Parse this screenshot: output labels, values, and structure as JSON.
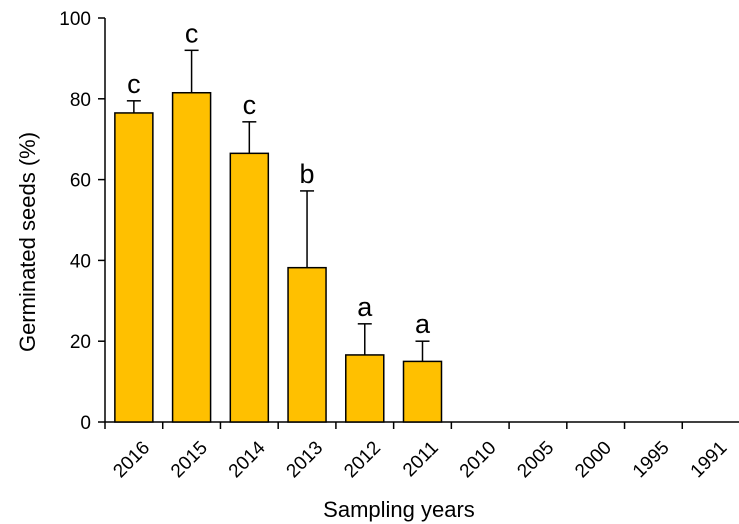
{
  "chart_data": {
    "type": "bar",
    "xlabel": "Sampling years",
    "ylabel": "Germinated seeds (%)",
    "ylim": [
      0,
      100
    ],
    "yticks": [
      0,
      20,
      40,
      60,
      80,
      100
    ],
    "grid": false,
    "legend": "none",
    "categories": [
      "2016",
      "2015",
      "2014",
      "2013",
      "2012",
      "2011",
      "2010",
      "2005",
      "2000",
      "1995",
      "1991"
    ],
    "values": [
      76.5,
      81.5,
      66.5,
      38.2,
      16.6,
      15.0,
      0,
      0,
      0,
      0,
      0
    ],
    "error_plus": [
      3.0,
      10.5,
      7.8,
      19.0,
      7.7,
      5.0,
      0,
      0,
      0,
      0,
      0
    ],
    "significance_letters": [
      "c",
      "c",
      "c",
      "b",
      "a",
      "a",
      "",
      "",
      "",
      "",
      ""
    ],
    "bar_color": "#FFC000",
    "bar_edge_color": "#000000"
  }
}
